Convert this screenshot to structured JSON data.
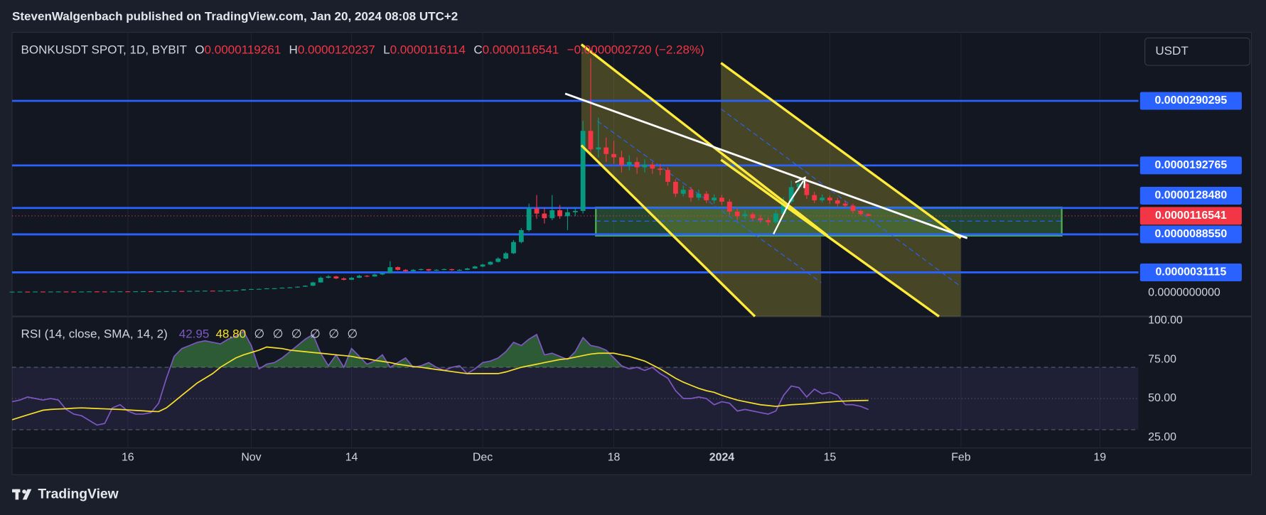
{
  "header": {
    "text": "StevenWalgenbach published on TradingView.com, Jan 20, 2024 08:08 UTC+2"
  },
  "footer": {
    "brand": "TradingView"
  },
  "chart_data": {
    "type": "candlestick",
    "currency": "USDT",
    "legend": {
      "symbol": "BONKUSDT SPOT, 1D, BYBIT",
      "ohlc": [
        {
          "key": "O",
          "value": "0.0000119261"
        },
        {
          "key": "H",
          "value": "0.0000120237"
        },
        {
          "key": "L",
          "value": "0.0000116114"
        },
        {
          "key": "C",
          "value": "0.0000116541"
        }
      ],
      "change": "−0.0000002720 (−2.28%)"
    },
    "up_color": "#089981",
    "down_color": "#f23645",
    "xlim": [
      "2023-10-01",
      "2024-02-24"
    ],
    "xticks": [
      {
        "value": "2023-10-16",
        "label": "16"
      },
      {
        "value": "2023-11-01",
        "label": "Nov"
      },
      {
        "value": "2023-11-14",
        "label": "14"
      },
      {
        "value": "2023-12-01",
        "label": "Dec"
      },
      {
        "value": "2023-12-18",
        "label": "18"
      },
      {
        "value": "2024-01-01",
        "label": "2024"
      },
      {
        "value": "2024-01-15",
        "label": "15"
      },
      {
        "value": "2024-02-01",
        "label": "Feb"
      },
      {
        "value": "2024-02-19",
        "label": "19"
      }
    ],
    "ylim": [
      -3.54e-06,
      3.939e-05
    ],
    "yticks": [
      {
        "value": 0,
        "label": "0.0000000000"
      }
    ],
    "level_color": "#2962ff",
    "levels": [
      {
        "value": 2.90295e-05,
        "label": "0.0000290295"
      },
      {
        "value": 1.92765e-05,
        "label": "0.0000192765"
      },
      {
        "value": 1.2848e-05,
        "label": "0.0000128480"
      },
      {
        "value": 8.855e-06,
        "label": "0.0000088550"
      },
      {
        "value": 3.1115e-06,
        "label": "0.0000031115"
      }
    ],
    "last_price": {
      "value": 1.16541e-05,
      "label": "0.0000116541",
      "color": "#f23645"
    },
    "x": [
      "2023-10-01",
      "2023-10-02",
      "2023-10-03",
      "2023-10-04",
      "2023-10-05",
      "2023-10-06",
      "2023-10-07",
      "2023-10-08",
      "2023-10-09",
      "2023-10-10",
      "2023-10-11",
      "2023-10-12",
      "2023-10-13",
      "2023-10-14",
      "2023-10-15",
      "2023-10-16",
      "2023-10-17",
      "2023-10-18",
      "2023-10-19",
      "2023-10-20",
      "2023-10-21",
      "2023-10-22",
      "2023-10-23",
      "2023-10-24",
      "2023-10-25",
      "2023-10-26",
      "2023-10-27",
      "2023-10-28",
      "2023-10-29",
      "2023-10-30",
      "2023-10-31",
      "2023-11-01",
      "2023-11-02",
      "2023-11-03",
      "2023-11-04",
      "2023-11-05",
      "2023-11-06",
      "2023-11-07",
      "2023-11-08",
      "2023-11-09",
      "2023-11-10",
      "2023-11-11",
      "2023-11-12",
      "2023-11-13",
      "2023-11-14",
      "2023-11-15",
      "2023-11-16",
      "2023-11-17",
      "2023-11-18",
      "2023-11-19",
      "2023-11-20",
      "2023-11-21",
      "2023-11-22",
      "2023-11-23",
      "2023-11-24",
      "2023-11-25",
      "2023-11-26",
      "2023-11-27",
      "2023-11-28",
      "2023-11-29",
      "2023-11-30",
      "2023-12-01",
      "2023-12-02",
      "2023-12-03",
      "2023-12-04",
      "2023-12-05",
      "2023-12-06",
      "2023-12-07",
      "2023-12-08",
      "2023-12-09",
      "2023-12-10",
      "2023-12-11",
      "2023-12-12",
      "2023-12-13",
      "2023-12-14",
      "2023-12-15",
      "2023-12-16",
      "2023-12-17",
      "2023-12-18",
      "2023-12-19",
      "2023-12-20",
      "2023-12-21",
      "2023-12-22",
      "2023-12-23",
      "2023-12-24",
      "2023-12-25",
      "2023-12-26",
      "2023-12-27",
      "2023-12-28",
      "2023-12-29",
      "2023-12-30",
      "2023-12-31",
      "2024-01-01",
      "2024-01-02",
      "2024-01-03",
      "2024-01-04",
      "2024-01-05",
      "2024-01-06",
      "2024-01-07",
      "2024-01-08",
      "2024-01-09",
      "2024-01-10",
      "2024-01-11",
      "2024-01-12",
      "2024-01-13",
      "2024-01-14",
      "2024-01-15",
      "2024-01-16",
      "2024-01-17",
      "2024-01-18",
      "2024-01-19",
      "2024-01-20"
    ],
    "candles": [
      [
        1.9e-07,
        2.1e-07,
        1.8e-07,
        2e-07
      ],
      [
        2e-07,
        2.2e-07,
        1.9e-07,
        2.1e-07
      ],
      [
        2.1e-07,
        2.2e-07,
        1.9e-07,
        2e-07
      ],
      [
        2e-07,
        2.3e-07,
        1.9e-07,
        2.2e-07
      ],
      [
        2.2e-07,
        2.3e-07,
        2e-07,
        2.1e-07
      ],
      [
        2.1e-07,
        2.3e-07,
        2e-07,
        2.2e-07
      ],
      [
        2.2e-07,
        2.4e-07,
        2.1e-07,
        2.3e-07
      ],
      [
        2.3e-07,
        2.4e-07,
        2.1e-07,
        2.2e-07
      ],
      [
        2.2e-07,
        2.3e-07,
        2e-07,
        2.1e-07
      ],
      [
        2.1e-07,
        2.3e-07,
        2e-07,
        2.2e-07
      ],
      [
        2.2e-07,
        2.5e-07,
        2.1e-07,
        2.4e-07
      ],
      [
        2.4e-07,
        2.5e-07,
        2.2e-07,
        2.3e-07
      ],
      [
        2.3e-07,
        2.4e-07,
        2.1e-07,
        2.2e-07
      ],
      [
        2.2e-07,
        2.5e-07,
        2.1e-07,
        2.4e-07
      ],
      [
        2.4e-07,
        2.6e-07,
        2.3e-07,
        2.5e-07
      ],
      [
        2.5e-07,
        2.6e-07,
        2.3e-07,
        2.4e-07
      ],
      [
        2.4e-07,
        2.7e-07,
        2.3e-07,
        2.6e-07
      ],
      [
        2.6e-07,
        2.8e-07,
        2.5e-07,
        2.7e-07
      ],
      [
        2.7e-07,
        2.8e-07,
        2.4e-07,
        2.5e-07
      ],
      [
        2.5e-07,
        2.7e-07,
        2.4e-07,
        2.6e-07
      ],
      [
        2.6e-07,
        2.9e-07,
        2.5e-07,
        2.8e-07
      ],
      [
        2.8e-07,
        3.1e-07,
        2.7e-07,
        3e-07
      ],
      [
        3e-07,
        3.1e-07,
        2.8e-07,
        2.9e-07
      ],
      [
        2.9e-07,
        3.2e-07,
        2.8e-07,
        3.1e-07
      ],
      [
        3.1e-07,
        3.4e-07,
        3e-07,
        3.3e-07
      ],
      [
        3.3e-07,
        3.6e-07,
        3.2e-07,
        3.5e-07
      ],
      [
        3.5e-07,
        3.7e-07,
        3.3e-07,
        3.4e-07
      ],
      [
        3.4e-07,
        3.7e-07,
        3.3e-07,
        3.6e-07
      ],
      [
        3.6e-07,
        3.9e-07,
        3.5e-07,
        3.8e-07
      ],
      [
        3.8e-07,
        4.2e-07,
        3.7e-07,
        4e-07
      ],
      [
        4e-07,
        5.8e-07,
        3.9e-07,
        5.5e-07
      ],
      [
        5.5e-07,
        6.4e-07,
        5.3e-07,
        6e-07
      ],
      [
        6e-07,
        6.6e-07,
        5.7e-07,
        6.2e-07
      ],
      [
        6.2e-07,
        7.3e-07,
        6e-07,
        7e-07
      ],
      [
        7e-07,
        7.6e-07,
        6.7e-07,
        7.2e-07
      ],
      [
        7.2e-07,
        8.4e-07,
        7e-07,
        8e-07
      ],
      [
        8e-07,
        9e-07,
        7.7e-07,
        8.5e-07
      ],
      [
        8.5e-07,
        9.9e-07,
        8.2e-07,
        9.5e-07
      ],
      [
        9.5e-07,
        1.15e-06,
        9.2e-07,
        1.1e-06
      ],
      [
        1.1e-06,
        1.7e-06,
        1.05e-06,
        1.6e-06
      ],
      [
        1.6e-06,
        2.5e-06,
        1.55e-06,
        2.3e-06
      ],
      [
        2.3e-06,
        2.7e-06,
        2.2e-06,
        2.5e-06
      ],
      [
        2.5e-06,
        2.6e-06,
        2.1e-06,
        2.2e-06
      ],
      [
        2.2e-06,
        2.35e-06,
        1.9e-06,
        2e-06
      ],
      [
        2e-06,
        2.4e-06,
        1.95e-06,
        2.3e-06
      ],
      [
        2.3e-06,
        2.75e-06,
        2.25e-06,
        2.6e-06
      ],
      [
        2.6e-06,
        2.7e-06,
        2.4e-06,
        2.5e-06
      ],
      [
        2.5e-06,
        2.9e-06,
        2.45e-06,
        2.8e-06
      ],
      [
        2.8e-06,
        3.1e-06,
        2.7e-06,
        3e-06
      ],
      [
        3e-06,
        4.8e-06,
        2.95e-06,
        3.9e-06
      ],
      [
        3.9e-06,
        4e-06,
        3.4e-06,
        3.5e-06
      ],
      [
        3.5e-06,
        3.6e-06,
        3.2e-06,
        3.3e-06
      ],
      [
        3.3e-06,
        3.6e-06,
        3.25e-06,
        3.5e-06
      ],
      [
        3.5e-06,
        3.7e-06,
        3.4e-06,
        3.6e-06
      ],
      [
        3.6e-06,
        3.65e-06,
        3.3e-06,
        3.4e-06
      ],
      [
        3.4e-06,
        3.6e-06,
        3.35e-06,
        3.5e-06
      ],
      [
        3.5e-06,
        3.7e-06,
        3.45e-06,
        3.6e-06
      ],
      [
        3.6e-06,
        3.65e-06,
        3.35e-06,
        3.45e-06
      ],
      [
        3.45e-06,
        3.6e-06,
        3.4e-06,
        3.5e-06
      ],
      [
        3.5e-06,
        3.8e-06,
        3.45e-06,
        3.7e-06
      ],
      [
        3.7e-06,
        4.1e-06,
        3.65e-06,
        4e-06
      ],
      [
        4e-06,
        4.4e-06,
        3.9e-06,
        4.3e-06
      ],
      [
        4.3e-06,
        4.8e-06,
        4.2e-06,
        4.7e-06
      ],
      [
        4.7e-06,
        5.4e-06,
        4.6e-06,
        5.2e-06
      ],
      [
        5.2e-06,
        6.2e-06,
        5.1e-06,
        6e-06
      ],
      [
        6e-06,
        8e-06,
        5.9e-06,
        7.7e-06
      ],
      [
        7.7e-06,
        9.8e-06,
        7.5e-06,
        9.5e-06
      ],
      [
        9.5e-06,
        1.35e-05,
        9.3e-06,
        1.28e-05
      ],
      [
        1.28e-05,
        1.48e-05,
        1.12e-05,
        1.2e-05
      ],
      [
        1.2e-05,
        1.29e-05,
        1.05e-05,
        1.13e-05
      ],
      [
        1.13e-05,
        1.48e-05,
        1.1e-05,
        1.25e-05
      ],
      [
        1.25e-05,
        1.33e-05,
        1.12e-05,
        1.16e-05
      ],
      [
        1.16e-05,
        1.28e-05,
        9.5e-06,
        1.22e-05
      ],
      [
        1.22e-05,
        1.3e-05,
        1.16e-05,
        1.24e-05
      ],
      [
        1.24e-05,
        2.6e-05,
        1.2e-05,
        2.45e-05
      ],
      [
        2.45e-05,
        3.55e-05,
        2.1e-05,
        2.17e-05
      ],
      [
        2.17e-05,
        2.65e-05,
        2.05e-05,
        2.2e-05
      ],
      [
        2.2e-05,
        2.35e-05,
        1.98e-05,
        2.1e-05
      ],
      [
        2.1e-05,
        2.3e-05,
        1.95e-05,
        2.05e-05
      ],
      [
        2.05e-05,
        2.15e-05,
        1.82e-05,
        1.93e-05
      ],
      [
        1.93e-05,
        2.08e-05,
        1.85e-05,
        1.98e-05
      ],
      [
        1.98e-05,
        2.05e-05,
        1.8e-05,
        1.9e-05
      ],
      [
        1.9e-05,
        2.02e-05,
        1.82e-05,
        1.94e-05
      ],
      [
        1.94e-05,
        1.98e-05,
        1.8e-05,
        1.88e-05
      ],
      [
        1.88e-05,
        1.95e-05,
        1.78e-05,
        1.86e-05
      ],
      [
        1.86e-05,
        1.9e-05,
        1.62e-05,
        1.68e-05
      ],
      [
        1.68e-05,
        1.72e-05,
        1.45e-05,
        1.5e-05
      ],
      [
        1.5e-05,
        1.62e-05,
        1.46e-05,
        1.56e-05
      ],
      [
        1.56e-05,
        1.6e-05,
        1.38e-05,
        1.44e-05
      ],
      [
        1.44e-05,
        1.56e-05,
        1.4e-05,
        1.5e-05
      ],
      [
        1.5e-05,
        1.54e-05,
        1.36e-05,
        1.4e-05
      ],
      [
        1.4e-05,
        1.49e-05,
        1.35e-05,
        1.44e-05
      ],
      [
        1.44e-05,
        1.48e-05,
        1.33e-05,
        1.38e-05
      ],
      [
        1.38e-05,
        1.42e-05,
        1.18e-05,
        1.23e-05
      ],
      [
        1.23e-05,
        1.28e-05,
        1.1e-05,
        1.16e-05
      ],
      [
        1.16e-05,
        1.25e-05,
        1.12e-05,
        1.19e-05
      ],
      [
        1.19e-05,
        1.22e-05,
        1.09e-05,
        1.13e-05
      ],
      [
        1.13e-05,
        1.18e-05,
        1.06e-05,
        1.1e-05
      ],
      [
        1.1e-05,
        1.14e-05,
        1.02e-05,
        1.07e-05
      ],
      [
        1.07e-05,
        1.25e-05,
        1.05e-05,
        1.2e-05
      ],
      [
        1.2e-05,
        1.45e-05,
        1.18e-05,
        1.38e-05
      ],
      [
        1.38e-05,
        1.7e-05,
        1.35e-05,
        1.6e-05
      ],
      [
        1.6e-05,
        1.75e-05,
        1.55e-05,
        1.65e-05
      ],
      [
        1.65e-05,
        1.69e-05,
        1.42e-05,
        1.48e-05
      ],
      [
        1.48e-05,
        1.53e-05,
        1.36e-05,
        1.4e-05
      ],
      [
        1.4e-05,
        1.49e-05,
        1.37e-05,
        1.44e-05
      ],
      [
        1.44e-05,
        1.47e-05,
        1.35e-05,
        1.4e-05
      ],
      [
        1.4e-05,
        1.44e-05,
        1.31e-05,
        1.35e-05
      ],
      [
        1.35e-05,
        1.39e-05,
        1.29e-05,
        1.32e-05
      ],
      [
        1.32e-05,
        1.35e-05,
        1.2e-05,
        1.24e-05
      ],
      [
        1.24e-05,
        1.26e-05,
        1.17e-05,
        1.19261e-05
      ],
      [
        1.19261e-05,
        1.20237e-05,
        1.16114e-05,
        1.16541e-05
      ]
    ],
    "rsi": {
      "type": "line",
      "title": "RSI (14, close, SMA, 14, 2)",
      "legend_values": [
        "42.95",
        "48.80"
      ],
      "na_labels": [
        "∅",
        "∅",
        "∅",
        "∅",
        "∅",
        "∅"
      ],
      "ylim": [
        18.3,
        102.6
      ],
      "yticks": [
        {
          "value": 100,
          "label": "100.00"
        },
        {
          "value": 75,
          "label": "75.00"
        },
        {
          "value": 50,
          "label": "50.00"
        },
        {
          "value": 25,
          "label": "25.00"
        }
      ],
      "bands": [
        70,
        50,
        30
      ],
      "band_fill": "rgba(126,87,194,0.12)",
      "overbought_fill": "rgba(76,175,80,0.45)",
      "series": [
        {
          "color": "#7e57c2",
          "values": [
            48,
            49,
            51,
            50,
            49,
            50,
            49,
            43,
            40,
            39,
            36,
            33,
            34,
            44,
            46,
            42,
            40,
            40,
            41,
            47,
            63,
            77,
            82,
            84,
            86,
            87,
            86,
            85,
            88,
            90,
            93,
            84,
            69,
            72,
            73,
            76,
            80,
            84,
            88,
            91,
            79,
            71,
            78,
            70,
            82,
            77,
            72,
            74,
            78,
            70,
            73,
            76,
            70,
            71,
            73,
            70,
            68,
            70,
            71,
            66,
            69,
            73,
            74,
            76,
            80,
            86,
            84,
            88,
            91,
            78,
            79,
            77,
            75,
            80,
            89,
            84,
            83,
            81,
            76,
            71,
            69,
            70,
            68,
            70,
            66,
            63,
            55,
            50,
            50,
            51,
            50,
            46,
            48,
            47,
            42,
            43,
            42,
            41,
            40,
            42,
            52,
            58,
            57,
            51,
            56,
            53,
            54,
            52,
            46,
            46,
            45,
            42.95
          ]
        },
        {
          "color": "#f7e02a",
          "values": [
            36.4,
            38,
            39.5,
            41,
            42.5,
            43,
            43.3,
            43.5,
            43.8,
            44,
            43.8,
            43.6,
            43.4,
            43.2,
            43,
            42.7,
            42.4,
            42.1,
            41.8,
            41.6,
            44,
            48,
            52,
            56,
            60,
            63,
            66,
            70,
            73,
            76,
            78,
            79.5,
            81,
            83,
            82.5,
            82,
            81,
            80.5,
            80,
            79.5,
            79,
            78.5,
            78,
            77.5,
            77,
            76,
            75.5,
            74.5,
            73.8,
            73,
            72,
            71.3,
            70.5,
            70,
            69.3,
            68.6,
            68,
            67.3,
            66.6,
            66,
            66,
            66,
            66,
            66,
            67,
            68.5,
            70,
            71,
            72,
            73,
            74,
            75,
            75.5,
            76.5,
            77.5,
            78.5,
            79,
            79,
            79,
            78,
            77,
            75.5,
            74,
            71.5,
            69,
            66,
            63,
            60.5,
            58.5,
            56.5,
            55,
            54,
            52,
            50.5,
            49,
            48,
            47,
            46,
            45.5,
            45,
            45.5,
            46,
            46.3,
            46.6,
            47,
            47.5,
            47.8,
            48.2,
            48.4,
            48.6,
            48.7,
            48.8
          ]
        }
      ]
    }
  }
}
